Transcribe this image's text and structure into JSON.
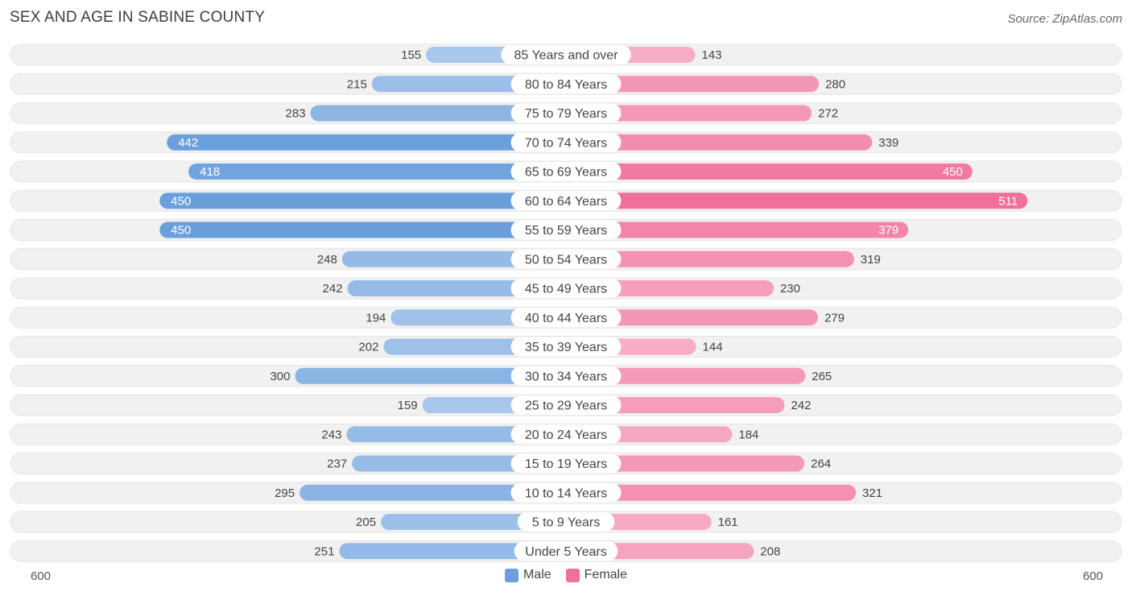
{
  "title": "SEX AND AGE IN SABINE COUNTY",
  "source": "Source: ZipAtlas.com",
  "colors": {
    "male": "#6a9fdc",
    "male_light": "#a9c8ec",
    "female": "#f07099",
    "female_light": "#f7aec5",
    "track": "#f1f1f1"
  },
  "axis": {
    "left_label": "600",
    "right_label": "600"
  },
  "legend": {
    "male": "Male",
    "female": "Female"
  },
  "chart_data": {
    "type": "bar",
    "orientation": "horizontal-diverging",
    "xlim": [
      -600,
      600
    ],
    "categories": [
      "85 Years and over",
      "80 to 84 Years",
      "75 to 79 Years",
      "70 to 74 Years",
      "65 to 69 Years",
      "60 to 64 Years",
      "55 to 59 Years",
      "50 to 54 Years",
      "45 to 49 Years",
      "40 to 44 Years",
      "35 to 39 Years",
      "30 to 34 Years",
      "25 to 29 Years",
      "20 to 24 Years",
      "15 to 19 Years",
      "10 to 14 Years",
      "5 to 9 Years",
      "Under 5 Years"
    ],
    "series": [
      {
        "name": "Male",
        "values": [
          155,
          215,
          283,
          442,
          418,
          450,
          450,
          248,
          242,
          194,
          202,
          300,
          159,
          243,
          237,
          295,
          205,
          251
        ]
      },
      {
        "name": "Female",
        "values": [
          143,
          280,
          272,
          339,
          450,
          511,
          379,
          319,
          230,
          279,
          144,
          265,
          242,
          184,
          264,
          321,
          161,
          208
        ]
      }
    ],
    "legend_position": "bottom-center",
    "grid": false
  }
}
